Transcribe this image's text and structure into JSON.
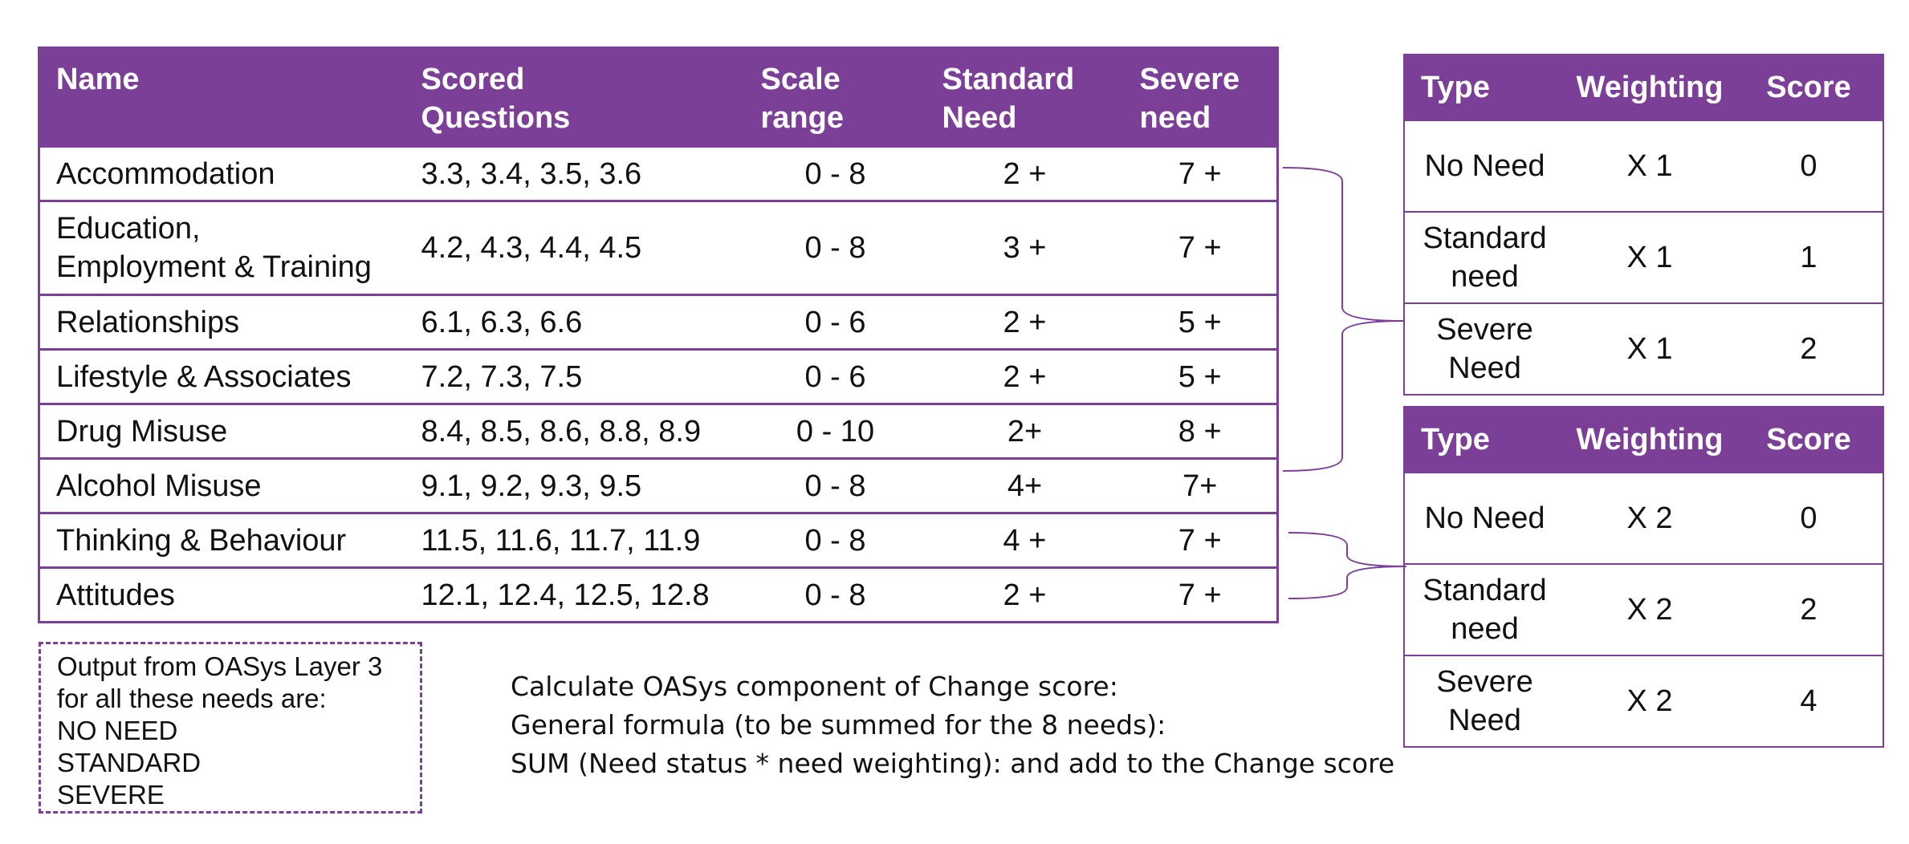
{
  "main_table": {
    "headers": [
      "Name",
      "Scored Questions",
      "Scale range",
      "Standard Need",
      "Severe need"
    ],
    "header_lines": [
      [
        "Name"
      ],
      [
        "Scored",
        "Questions"
      ],
      [
        "Scale",
        "range"
      ],
      [
        "Standard",
        "Need"
      ],
      [
        "Severe",
        "need"
      ]
    ],
    "rows": [
      {
        "name": "Accommodation",
        "questions": "3.3, 3.4, 3.5, 3.6",
        "range": "0 - 8",
        "standard": "2 +",
        "severe": "7 +"
      },
      {
        "name_lines": [
          "Education,",
          "Employment & Training"
        ],
        "questions": "4.2, 4.3, 4.4, 4.5",
        "range": "0 - 8",
        "standard": "3 +",
        "severe": "7 +"
      },
      {
        "name": "Relationships",
        "questions": "6.1, 6.3, 6.6",
        "range": "0 - 6",
        "standard": "2 +",
        "severe": "5 +"
      },
      {
        "name": "Lifestyle & Associates",
        "questions": "7.2, 7.3, 7.5",
        "range": "0 - 6",
        "standard": "2 +",
        "severe": "5 +"
      },
      {
        "name": "Drug Misuse",
        "questions": "8.4, 8.5, 8.6, 8.8, 8.9",
        "range": "0 - 10",
        "standard": "2+",
        "severe": "8 +"
      },
      {
        "name": "Alcohol Misuse",
        "questions": "9.1, 9.2, 9.3, 9.5",
        "range": "0 - 8",
        "standard": "4+",
        "severe": "7+"
      },
      {
        "name": "Thinking & Behaviour",
        "questions": "11.5, 11.6, 11.7, 11.9",
        "range": "0 - 8",
        "standard": "4 +",
        "severe": "7 +"
      },
      {
        "name": "Attitudes",
        "questions": "12.1, 12.4, 12.5, 12.8",
        "range": "0 - 8",
        "standard": "2 +",
        "severe": "7 +"
      }
    ]
  },
  "weighting_table_1": {
    "headers": [
      "Type",
      "Weighting",
      "Score"
    ],
    "rows": [
      {
        "type_lines": [
          "No Need"
        ],
        "weighting": "X 1",
        "score": "0"
      },
      {
        "type_lines": [
          "Standard",
          "need"
        ],
        "weighting": "X 1",
        "score": "1"
      },
      {
        "type_lines": [
          "Severe",
          "Need"
        ],
        "weighting": "X 1",
        "score": "2"
      }
    ]
  },
  "weighting_table_2": {
    "headers": [
      "Type",
      "Weighting",
      "Score"
    ],
    "rows": [
      {
        "type_lines": [
          "No Need"
        ],
        "weighting": "X 2",
        "score": "0"
      },
      {
        "type_lines": [
          "Standard",
          "need"
        ],
        "weighting": "X 2",
        "score": "2"
      },
      {
        "type_lines": [
          "Severe",
          "Need"
        ],
        "weighting": "X 2",
        "score": "4"
      }
    ]
  },
  "note": {
    "lines": [
      "Output from OASys Layer 3",
      "for all these needs are:",
      "NO NEED",
      "STANDARD",
      "SEVERE"
    ]
  },
  "formula": {
    "lines": [
      "Calculate OASys component of Change score:",
      "General formula (to be summed for the 8 needs):",
      "SUM (Need status * need weighting): and add to the Change score"
    ]
  },
  "colors": {
    "accent": "#7b3f98",
    "header_text": "#ffffff",
    "body_text": "#111111"
  }
}
